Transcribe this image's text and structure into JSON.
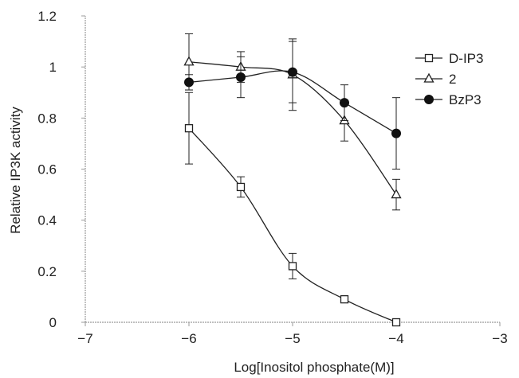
{
  "chart_data": {
    "type": "line",
    "xlabel": "Log[Inositol phosphate(M)]",
    "ylabel": "Relative IP3K activity",
    "xlim": [
      -7,
      -3
    ],
    "ylim": [
      0,
      1.2
    ],
    "x_ticks": [
      -7,
      -6,
      -5,
      -4,
      -3
    ],
    "y_ticks": [
      0,
      0.2,
      0.4,
      0.6,
      0.8,
      1,
      1.2
    ],
    "x_tick_labels": [
      "−7",
      "−6",
      "−5",
      "−4",
      "−3"
    ],
    "y_tick_labels": [
      "0",
      "0.2",
      "0.4",
      "0.6",
      "0.8",
      "1",
      "1.2"
    ],
    "grid": false,
    "legend_position": "top-right",
    "series": [
      {
        "name": "D-IP3",
        "marker": "open-square",
        "x": [
          -6,
          -5.5,
          -5,
          -4.5,
          -4
        ],
        "y": [
          0.76,
          0.53,
          0.22,
          0.09,
          0.0
        ],
        "err": [
          0.14,
          0.04,
          0.05,
          0.01,
          0.0
        ]
      },
      {
        "name": "2",
        "marker": "open-triangle",
        "x": [
          -6,
          -5.5,
          -5,
          -4.5,
          -4
        ],
        "y": [
          1.02,
          1.0,
          0.97,
          0.79,
          0.5
        ],
        "err": [
          0.11,
          0.06,
          0.14,
          0.08,
          0.06
        ]
      },
      {
        "name": "BzP3",
        "marker": "filled-circle",
        "x": [
          -6,
          -5.5,
          -5,
          -4.5,
          -4
        ],
        "y": [
          0.94,
          0.96,
          0.98,
          0.86,
          0.74
        ],
        "err": [
          0.03,
          0.08,
          0.12,
          0.07,
          0.14
        ]
      }
    ]
  }
}
